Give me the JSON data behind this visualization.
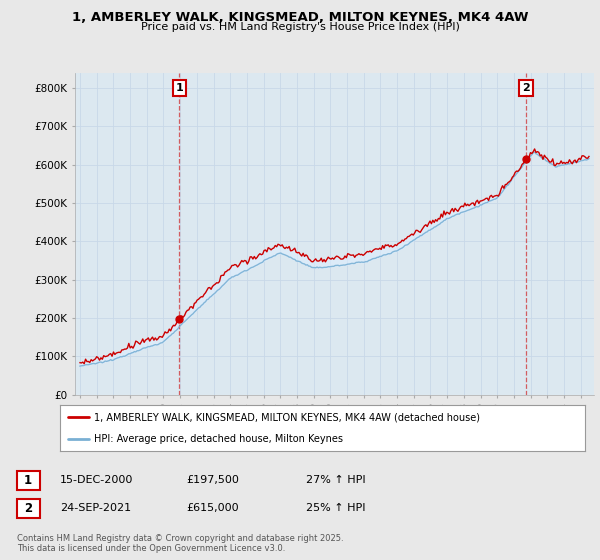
{
  "title": "1, AMBERLEY WALK, KINGSMEAD, MILTON KEYNES, MK4 4AW",
  "subtitle": "Price paid vs. HM Land Registry's House Price Index (HPI)",
  "sale1_label": "15-DEC-2000",
  "sale1_price": 197500,
  "sale1_year": 2000.96,
  "sale1_hpi_pct": "27% ↑ HPI",
  "sale2_label": "24-SEP-2021",
  "sale2_price": 615000,
  "sale2_year": 2021.73,
  "sale2_hpi_pct": "25% ↑ HPI",
  "red_color": "#cc0000",
  "blue_color": "#7ab0d4",
  "fill_color": "#ddeeff",
  "legend_line1": "1, AMBERLEY WALK, KINGSMEAD, MILTON KEYNES, MK4 4AW (detached house)",
  "legend_line2": "HPI: Average price, detached house, Milton Keynes",
  "footer": "Contains HM Land Registry data © Crown copyright and database right 2025.\nThis data is licensed under the Open Government Licence v3.0.",
  "ylabel_ticks": [
    0,
    100000,
    200000,
    300000,
    400000,
    500000,
    600000,
    700000,
    800000
  ],
  "ylabel_labels": [
    "£0",
    "£100K",
    "£200K",
    "£300K",
    "£400K",
    "£500K",
    "£600K",
    "£700K",
    "£800K"
  ],
  "ylim": [
    0,
    840000
  ],
  "xlim_start": 1994.7,
  "xlim_end": 2025.8,
  "bg_color": "#e8e8e8",
  "plot_bg_color": "#dce8f0"
}
